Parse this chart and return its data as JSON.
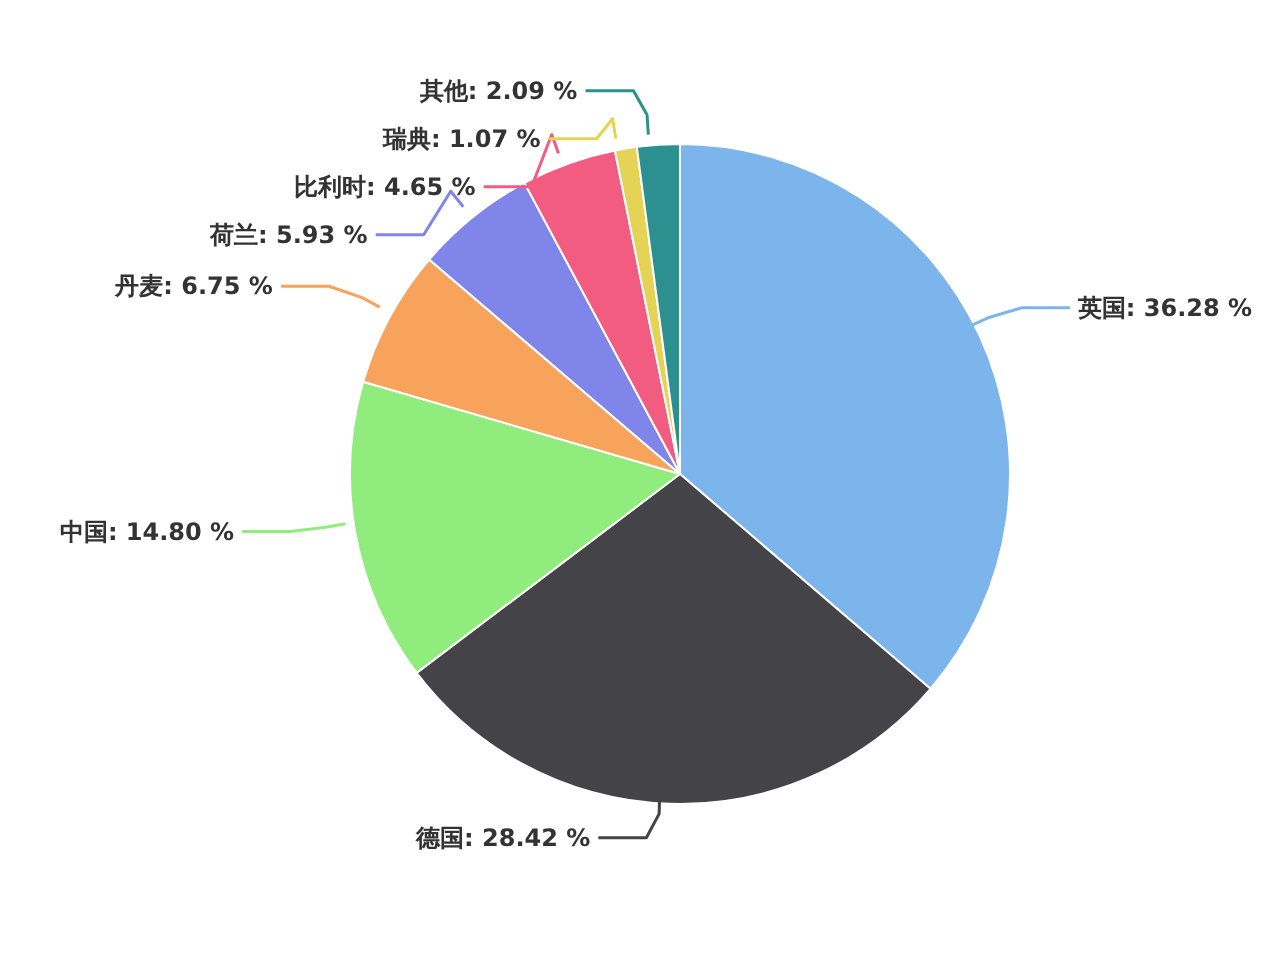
{
  "chart_data": {
    "type": "pie",
    "categories": [
      "英国",
      "德国",
      "中国",
      "丹麦",
      "荷兰",
      "比利时",
      "瑞典",
      "其他"
    ],
    "values": [
      36.28,
      28.42,
      14.8,
      6.75,
      5.93,
      4.65,
      1.07,
      2.09
    ],
    "value_labels": [
      "36.28 %",
      "28.42 %",
      "14.80 %",
      "6.75 %",
      "5.93 %",
      "4.65 %",
      "1.07 %",
      "2.09 %"
    ],
    "colors": [
      "#7cb5ec",
      "#434348",
      "#90ed7d",
      "#f7a35c",
      "#8085e9",
      "#f15c80",
      "#e4d354",
      "#2b908f"
    ],
    "legend": false
  }
}
